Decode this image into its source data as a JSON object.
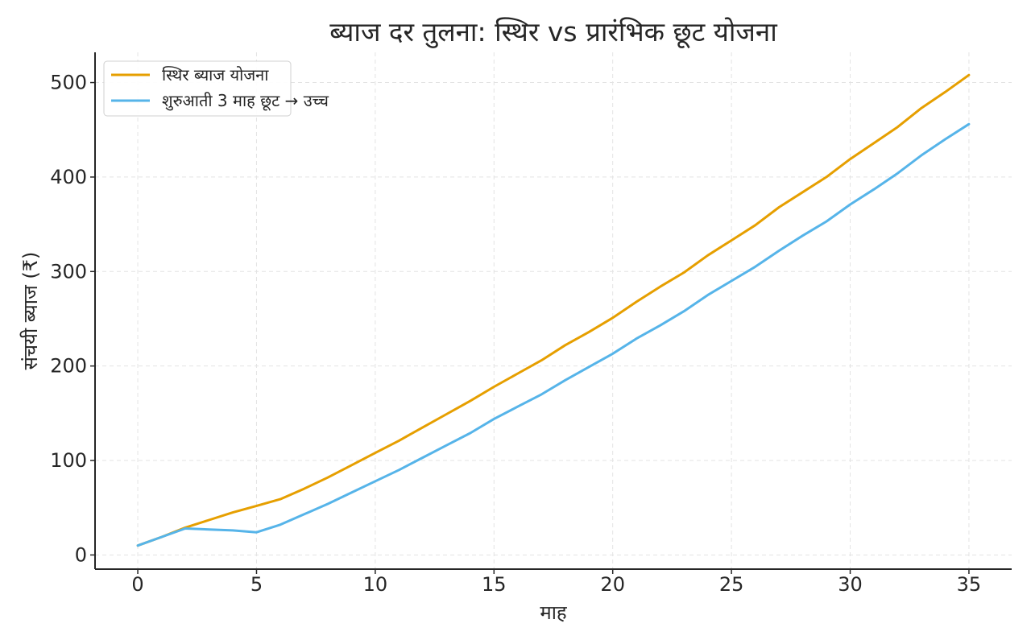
{
  "chart_data": {
    "type": "line",
    "title": "ब्याज दर तुलना: स्थिर vs प्रारंभिक छूट योजना",
    "xlabel": "माह",
    "ylabel": "संचयी ब्याज (₹)",
    "xlim": [
      -1.8,
      36.8
    ],
    "ylim": [
      -15,
      532
    ],
    "xticks": [
      0,
      5,
      10,
      15,
      20,
      25,
      30,
      35
    ],
    "yticks": [
      0,
      100,
      200,
      300,
      400,
      500
    ],
    "grid": true,
    "legend_position": "top-left",
    "x": [
      0,
      1,
      2,
      3,
      4,
      5,
      6,
      7,
      8,
      9,
      10,
      11,
      12,
      13,
      14,
      15,
      16,
      17,
      18,
      19,
      20,
      21,
      22,
      23,
      24,
      25,
      26,
      27,
      28,
      29,
      30,
      31,
      32,
      33,
      34,
      35
    ],
    "series": [
      {
        "name": "स्थिर ब्याज योजना",
        "color": "#E69F00",
        "values": [
          10,
          19,
          29,
          37,
          45,
          52,
          59,
          70,
          82,
          95,
          108,
          121,
          135,
          149,
          163,
          178,
          192,
          206,
          222,
          236,
          251,
          268,
          284,
          299,
          317,
          333,
          349,
          368,
          384,
          400,
          419,
          436,
          453,
          473,
          490,
          508
        ]
      },
      {
        "name": "शुरुआती 3 माह छूट → उच्च",
        "color": "#56B4E9",
        "values": [
          10,
          19,
          28,
          27,
          26,
          24,
          32,
          43,
          54,
          66,
          78,
          90,
          103,
          116,
          129,
          144,
          157,
          170,
          185,
          199,
          213,
          229,
          243,
          258,
          275,
          290,
          305,
          322,
          338,
          353,
          371,
          387,
          404,
          423,
          440,
          456
        ]
      }
    ]
  }
}
